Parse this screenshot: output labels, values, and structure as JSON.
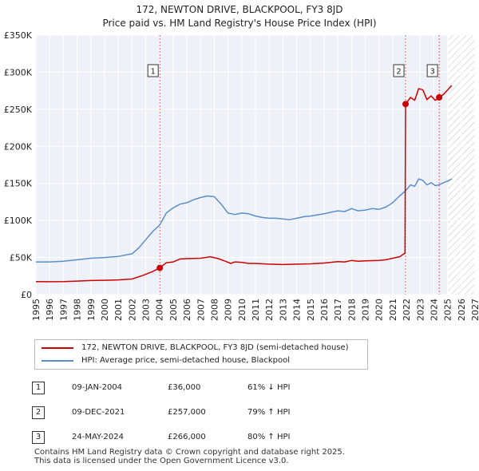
{
  "title_line1": "172, NEWTON DRIVE, BLACKPOOL, FY3 8JD",
  "title_line2": "Price paid vs. HM Land Registry's House Price Index (HPI)",
  "chart_data": {
    "type": "line",
    "title": "172, NEWTON DRIVE, BLACKPOOL, FY3 8JD — Price paid vs. HM Land Registry's House Price Index (HPI)",
    "xlim": [
      1995,
      2027
    ],
    "ylim": [
      0,
      350000
    ],
    "x_ticks": [
      1995,
      1996,
      1997,
      1998,
      1999,
      2000,
      2001,
      2002,
      2003,
      2004,
      2005,
      2006,
      2007,
      2008,
      2009,
      2010,
      2011,
      2012,
      2013,
      2014,
      2015,
      2016,
      2017,
      2018,
      2019,
      2020,
      2021,
      2022,
      2023,
      2024,
      2025,
      2026,
      2027
    ],
    "y_ticks": [
      {
        "value": 0,
        "label": "£0"
      },
      {
        "value": 50000,
        "label": "£50K"
      },
      {
        "value": 100000,
        "label": "£100K"
      },
      {
        "value": 150000,
        "label": "£150K"
      },
      {
        "value": 200000,
        "label": "£200K"
      },
      {
        "value": 250000,
        "label": "£250K"
      },
      {
        "value": 300000,
        "label": "£300K"
      },
      {
        "value": 350000,
        "label": "£350K"
      }
    ],
    "forecast_start": 2025.0,
    "series": [
      {
        "name": "172, NEWTON DRIVE, BLACKPOOL, FY3 8JD (semi-detached house)",
        "color": "#cc0000",
        "points": [
          [
            1995.0,
            17500
          ],
          [
            1996.0,
            17300
          ],
          [
            1997.0,
            17500
          ],
          [
            1998.0,
            18200
          ],
          [
            1999.0,
            19000
          ],
          [
            2000.0,
            19300
          ],
          [
            2001.0,
            19800
          ],
          [
            2002.0,
            21000
          ],
          [
            2002.8,
            26000
          ],
          [
            2003.5,
            31000
          ],
          [
            2004.03,
            36000
          ],
          [
            2004.5,
            43000
          ],
          [
            2005.0,
            44000
          ],
          [
            2005.5,
            48000
          ],
          [
            2006.0,
            48500
          ],
          [
            2007.0,
            49000
          ],
          [
            2007.7,
            51000
          ],
          [
            2008.3,
            48500
          ],
          [
            2008.8,
            45000
          ],
          [
            2009.2,
            42000
          ],
          [
            2009.5,
            44000
          ],
          [
            2010.0,
            43500
          ],
          [
            2010.5,
            42000
          ],
          [
            2011.0,
            42000
          ],
          [
            2012.0,
            41000
          ],
          [
            2013.0,
            40500
          ],
          [
            2014.0,
            41000
          ],
          [
            2015.0,
            41500
          ],
          [
            2016.0,
            42500
          ],
          [
            2016.5,
            43500
          ],
          [
            2017.0,
            44500
          ],
          [
            2017.5,
            44000
          ],
          [
            2018.0,
            46000
          ],
          [
            2018.5,
            45000
          ],
          [
            2019.0,
            45500
          ],
          [
            2020.0,
            46000
          ],
          [
            2020.5,
            47000
          ],
          [
            2021.0,
            49000
          ],
          [
            2021.5,
            51000
          ],
          [
            2021.9,
            56000
          ],
          [
            2021.94,
            257000
          ],
          [
            2022.3,
            266000
          ],
          [
            2022.6,
            262000
          ],
          [
            2022.9,
            278000
          ],
          [
            2023.2,
            276000
          ],
          [
            2023.5,
            263000
          ],
          [
            2023.8,
            268000
          ],
          [
            2024.1,
            262000
          ],
          [
            2024.39,
            266000
          ],
          [
            2024.7,
            270000
          ],
          [
            2025.0,
            276000
          ],
          [
            2025.3,
            282000
          ]
        ]
      },
      {
        "name": "HPI: Average price, semi-detached house, Blackpool",
        "color": "#5b8ec9",
        "points": [
          [
            1995.0,
            44000
          ],
          [
            1996.0,
            44000
          ],
          [
            1997.0,
            45000
          ],
          [
            1998.0,
            47000
          ],
          [
            1999.0,
            49000
          ],
          [
            2000.0,
            50000
          ],
          [
            2001.0,
            51500
          ],
          [
            2002.0,
            55000
          ],
          [
            2002.5,
            63000
          ],
          [
            2003.0,
            74000
          ],
          [
            2003.5,
            85000
          ],
          [
            2004.03,
            94000
          ],
          [
            2004.5,
            110000
          ],
          [
            2005.0,
            117000
          ],
          [
            2005.5,
            122000
          ],
          [
            2006.0,
            124000
          ],
          [
            2006.5,
            128000
          ],
          [
            2007.0,
            131000
          ],
          [
            2007.5,
            133000
          ],
          [
            2008.0,
            132000
          ],
          [
            2008.5,
            122000
          ],
          [
            2009.0,
            110000
          ],
          [
            2009.5,
            108000
          ],
          [
            2010.0,
            110000
          ],
          [
            2010.5,
            109000
          ],
          [
            2011.0,
            106000
          ],
          [
            2011.5,
            104000
          ],
          [
            2012.0,
            103000
          ],
          [
            2012.5,
            103000
          ],
          [
            2013.0,
            102000
          ],
          [
            2013.5,
            101000
          ],
          [
            2014.0,
            103000
          ],
          [
            2014.5,
            105000
          ],
          [
            2015.0,
            106000
          ],
          [
            2015.5,
            107500
          ],
          [
            2016.0,
            109000
          ],
          [
            2016.5,
            111000
          ],
          [
            2017.0,
            113000
          ],
          [
            2017.5,
            112000
          ],
          [
            2018.0,
            116000
          ],
          [
            2018.5,
            113000
          ],
          [
            2019.0,
            114000
          ],
          [
            2019.5,
            116000
          ],
          [
            2020.0,
            115000
          ],
          [
            2020.5,
            118000
          ],
          [
            2021.0,
            124000
          ],
          [
            2021.5,
            133000
          ],
          [
            2021.94,
            140000
          ],
          [
            2022.3,
            148000
          ],
          [
            2022.6,
            146000
          ],
          [
            2022.9,
            156000
          ],
          [
            2023.2,
            154000
          ],
          [
            2023.5,
            148000
          ],
          [
            2023.8,
            151000
          ],
          [
            2024.1,
            147000
          ],
          [
            2024.39,
            148000
          ],
          [
            2024.7,
            151000
          ],
          [
            2025.0,
            153000
          ],
          [
            2025.3,
            156000
          ]
        ]
      }
    ],
    "sales": [
      {
        "n": "1",
        "x": 2004.03,
        "price": 36000
      },
      {
        "n": "2",
        "x": 2021.94,
        "price": 257000
      },
      {
        "n": "3",
        "x": 2024.39,
        "price": 266000
      }
    ]
  },
  "legend": {
    "items": [
      {
        "label": "172, NEWTON DRIVE, BLACKPOOL, FY3 8JD (semi-detached house)",
        "color": "#cc0000"
      },
      {
        "label": "HPI: Average price, semi-detached house, Blackpool",
        "color": "#5b8ec9"
      }
    ]
  },
  "transactions": [
    {
      "n": "1",
      "date": "09-JAN-2004",
      "price": "£36,000",
      "hpi": "61% ↓ HPI"
    },
    {
      "n": "2",
      "date": "09-DEC-2021",
      "price": "£257,000",
      "hpi": "79% ↑ HPI"
    },
    {
      "n": "3",
      "date": "24-MAY-2024",
      "price": "£266,000",
      "hpi": "80% ↑ HPI"
    }
  ],
  "footer": {
    "line1": "Contains HM Land Registry data © Crown copyright and database right 2025.",
    "line2": "This data is licensed under the Open Government Licence v3.0."
  }
}
